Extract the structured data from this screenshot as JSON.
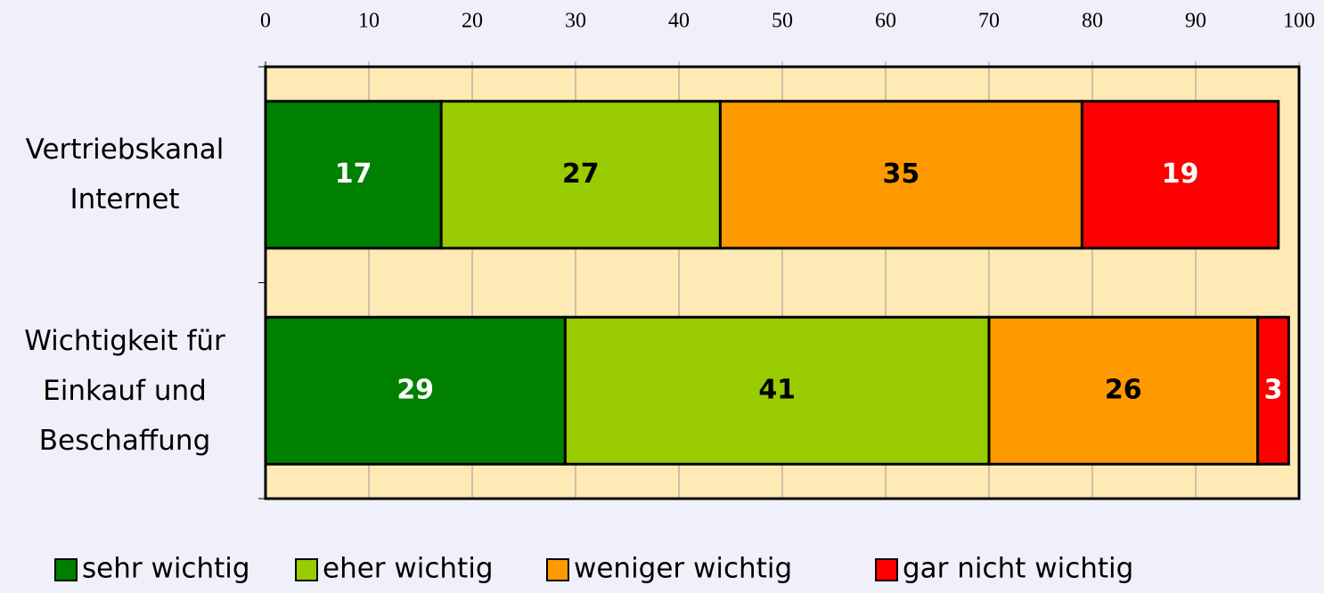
{
  "chart_data": {
    "type": "stacked_barh",
    "categories": [
      "Vertriebskanal Internet",
      "Wichtigkeit für Einkauf und Beschaffung"
    ],
    "series": [
      {
        "name": "sehr wichtig",
        "color": "#008000",
        "label_color": "#ffffff",
        "values": [
          17,
          29
        ]
      },
      {
        "name": "eher wichtig",
        "color": "#99cc00",
        "label_color": "#000000",
        "values": [
          27,
          41
        ]
      },
      {
        "name": "weniger wichtig",
        "color": "#ff9900",
        "label_color": "#000000",
        "values": [
          35,
          26
        ]
      },
      {
        "name": "gar nicht wichtig",
        "color": "#ff0000",
        "label_color": "#ffffff",
        "values": [
          19,
          3
        ]
      }
    ],
    "xlim": [
      0,
      100
    ],
    "xticks": [
      0,
      10,
      20,
      30,
      40,
      50,
      60,
      70,
      80,
      90,
      100
    ],
    "grid": true,
    "legend": "bottom",
    "plot_background": "#ffe9b5"
  }
}
